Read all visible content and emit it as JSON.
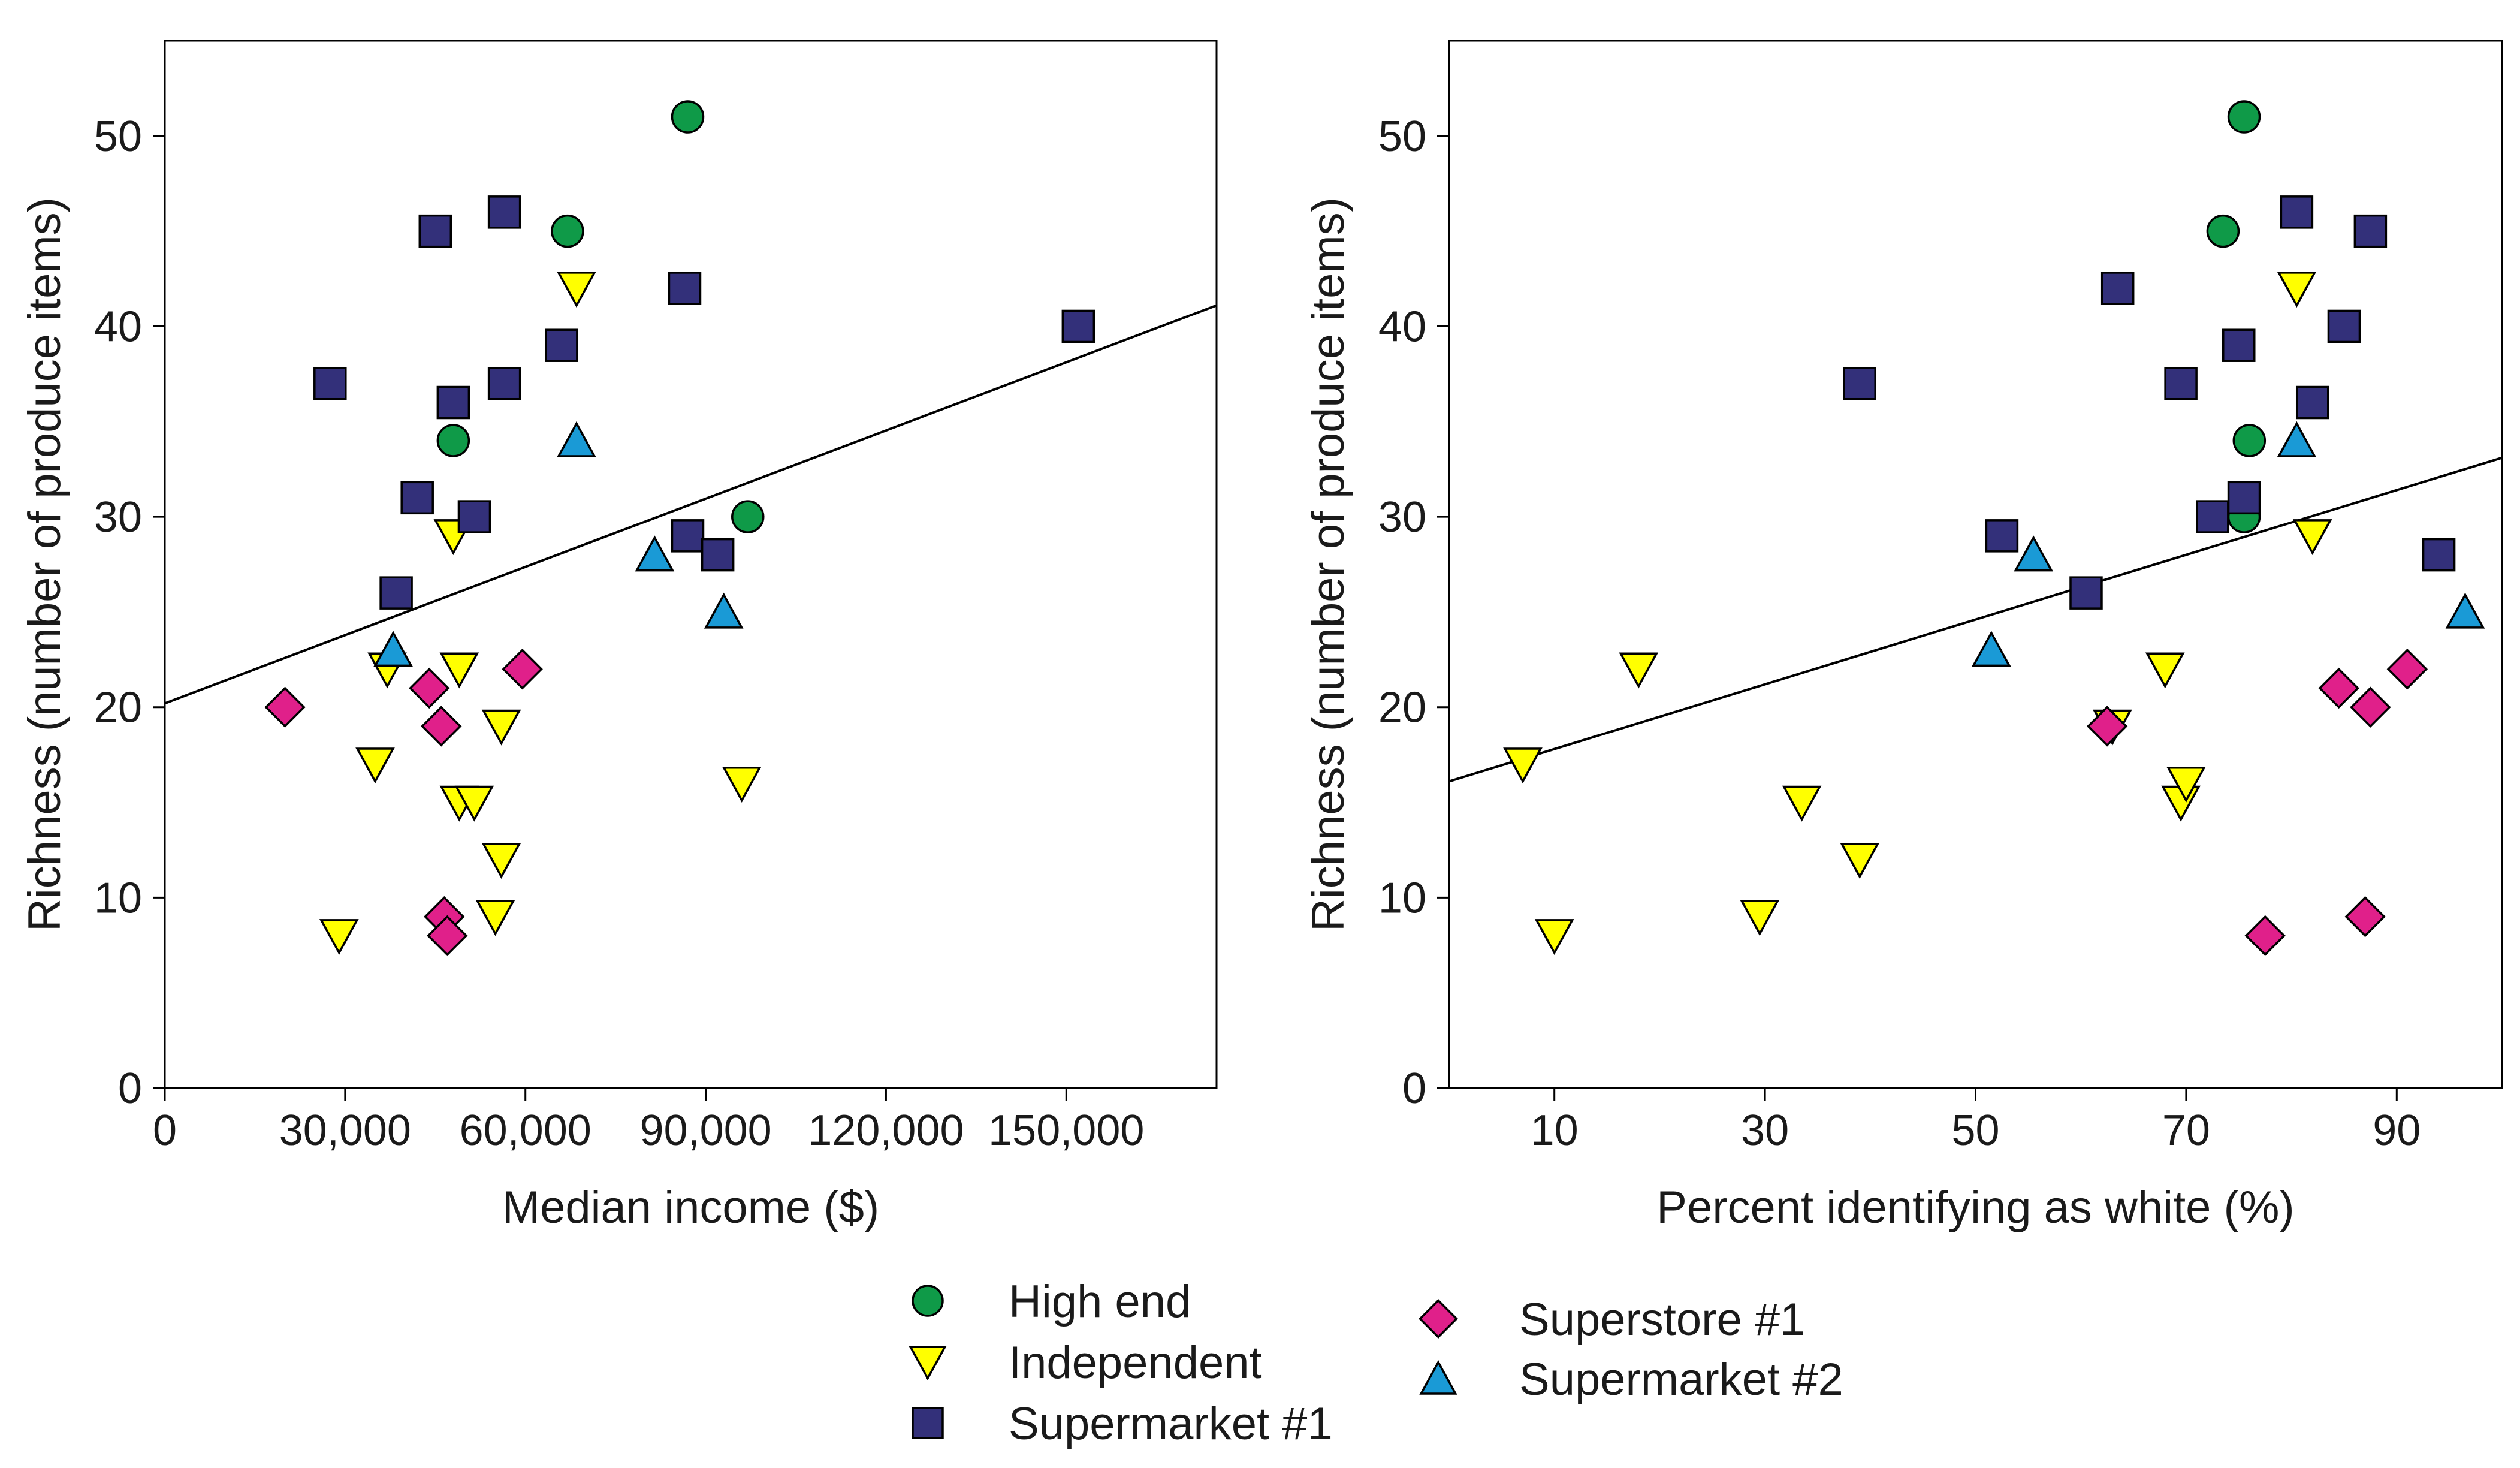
{
  "colors": {
    "high_end": "#0f9a48",
    "independent": "#ffff00",
    "supermarket_1": "#33307a",
    "superstore_1": "#e0208a",
    "supermarket_2": "#1a9ad6"
  },
  "legend": [
    {
      "key": "high_end",
      "label": "High end",
      "marker": "circle"
    },
    {
      "key": "independent",
      "label": "Independent",
      "marker": "triangle-down"
    },
    {
      "key": "supermarket_1",
      "label": "Supermarket #1",
      "marker": "square"
    },
    {
      "key": "superstore_1",
      "label": "Superstore #1",
      "marker": "diamond"
    },
    {
      "key": "supermarket_2",
      "label": "Supermarket #2",
      "marker": "triangle-up"
    }
  ],
  "chart_data": [
    {
      "type": "scatter",
      "title": "",
      "xlabel": "Median income ($)",
      "ylabel": "Richness (number of produce items)",
      "xlim": [
        0,
        175000
      ],
      "ylim": [
        0,
        55
      ],
      "xticks": [
        0,
        30000,
        60000,
        90000,
        120000,
        150000
      ],
      "xtick_labels": [
        "0",
        "30,000",
        "60,000",
        "90,000",
        "120,000",
        "150,000"
      ],
      "yticks": [
        0,
        10,
        20,
        30,
        40,
        50
      ],
      "ytick_labels": [
        "0",
        "10",
        "20",
        "30",
        "40",
        "50"
      ],
      "regression_line": {
        "x": [
          0,
          175000
        ],
        "y": [
          20.2,
          41.1
        ]
      },
      "series": [
        {
          "name": "High end",
          "key": "high_end",
          "marker": "circle",
          "points": [
            [
              87000,
              51
            ],
            [
              67000,
              45
            ],
            [
              48000,
              34
            ],
            [
              97000,
              30
            ]
          ]
        },
        {
          "name": "Independent",
          "key": "independent",
          "marker": "triangle-down",
          "points": [
            [
              68500,
              42
            ],
            [
              48000,
              29
            ],
            [
              37000,
              22
            ],
            [
              49000,
              22
            ],
            [
              56000,
              19
            ],
            [
              35000,
              17
            ],
            [
              49000,
              15
            ],
            [
              51500,
              15
            ],
            [
              96000,
              16
            ],
            [
              56000,
              12
            ],
            [
              55000,
              9
            ],
            [
              29000,
              8
            ]
          ]
        },
        {
          "name": "Supermarket #1",
          "key": "supermarket_1",
          "marker": "square",
          "points": [
            [
              56500,
              46
            ],
            [
              45000,
              45
            ],
            [
              86500,
              42
            ],
            [
              152000,
              40
            ],
            [
              66000,
              39
            ],
            [
              27500,
              37
            ],
            [
              56500,
              37
            ],
            [
              48000,
              36
            ],
            [
              42000,
              31
            ],
            [
              51500,
              30
            ],
            [
              87000,
              29
            ],
            [
              92000,
              28
            ],
            [
              38500,
              26
            ]
          ]
        },
        {
          "name": "Superstore #1",
          "key": "superstore_1",
          "marker": "diamond",
          "points": [
            [
              59500,
              22
            ],
            [
              44000,
              21
            ],
            [
              20000,
              20
            ],
            [
              46000,
              19
            ],
            [
              46500,
              9
            ],
            [
              47000,
              8
            ]
          ]
        },
        {
          "name": "Supermarket #2",
          "key": "supermarket_2",
          "marker": "triangle-up",
          "points": [
            [
              68500,
              34
            ],
            [
              81500,
              28
            ],
            [
              38000,
              23
            ],
            [
              93000,
              25
            ]
          ]
        }
      ]
    },
    {
      "type": "scatter",
      "title": "",
      "xlabel": "Percent identifying as white (%)",
      "ylabel": "Richness (number of produce items)",
      "xlim": [
        0,
        100
      ],
      "ylim": [
        0,
        55
      ],
      "xticks": [
        10,
        30,
        50,
        70,
        90
      ],
      "xtick_labels": [
        "10",
        "30",
        "50",
        "70",
        "90"
      ],
      "yticks": [
        0,
        10,
        20,
        30,
        40,
        50
      ],
      "ytick_labels": [
        "0",
        "10",
        "20",
        "30",
        "40",
        "50"
      ],
      "regression_line": {
        "x": [
          0,
          100
        ],
        "y": [
          16.1,
          33.1
        ]
      },
      "series": [
        {
          "name": "High end",
          "key": "high_end",
          "marker": "circle",
          "points": [
            [
              75.5,
              51
            ],
            [
              73.5,
              45
            ],
            [
              76,
              34
            ],
            [
              75.5,
              30
            ]
          ]
        },
        {
          "name": "Independent",
          "key": "independent",
          "marker": "triangle-down",
          "points": [
            [
              80.5,
              42
            ],
            [
              82,
              29
            ],
            [
              18,
              22
            ],
            [
              68,
              22
            ],
            [
              63,
              19
            ],
            [
              7,
              17
            ],
            [
              33.5,
              15
            ],
            [
              69.5,
              15
            ],
            [
              70,
              16
            ],
            [
              39,
              12
            ],
            [
              29.5,
              9
            ],
            [
              10,
              8
            ]
          ]
        },
        {
          "name": "Supermarket #1",
          "key": "supermarket_1",
          "marker": "square",
          "points": [
            [
              80.5,
              46
            ],
            [
              87.5,
              45
            ],
            [
              63.5,
              42
            ],
            [
              85,
              40
            ],
            [
              75,
              39
            ],
            [
              39,
              37
            ],
            [
              69.5,
              37
            ],
            [
              82,
              36
            ],
            [
              75.5,
              31
            ],
            [
              72.5,
              30
            ],
            [
              52.5,
              29
            ],
            [
              94,
              28
            ],
            [
              60.5,
              26
            ]
          ]
        },
        {
          "name": "Superstore #1",
          "key": "superstore_1",
          "marker": "diamond",
          "points": [
            [
              91,
              22
            ],
            [
              84.5,
              21
            ],
            [
              87.5,
              20
            ],
            [
              62.5,
              19
            ],
            [
              87,
              9
            ],
            [
              77.5,
              8
            ]
          ]
        },
        {
          "name": "Supermarket #2",
          "key": "supermarket_2",
          "marker": "triangle-up",
          "points": [
            [
              80.5,
              34
            ],
            [
              55.5,
              28
            ],
            [
              51.5,
              23
            ],
            [
              96.5,
              25
            ]
          ]
        }
      ]
    }
  ]
}
